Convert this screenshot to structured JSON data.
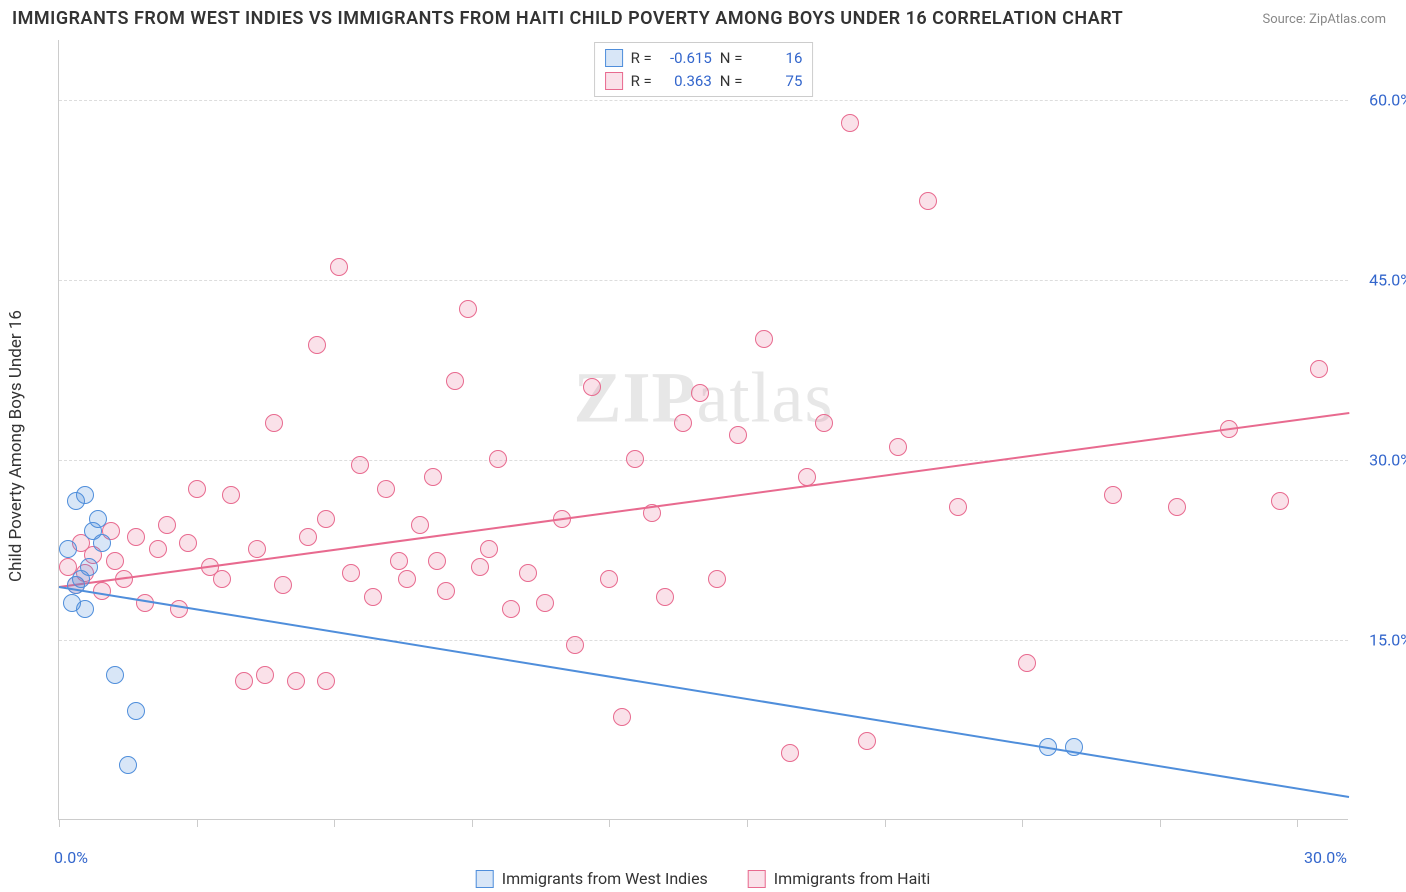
{
  "title": "IMMIGRANTS FROM WEST INDIES VS IMMIGRANTS FROM HAITI CHILD POVERTY AMONG BOYS UNDER 16 CORRELATION CHART",
  "source": "Source: ZipAtlas.com",
  "ylabel": "Child Poverty Among Boys Under 16",
  "watermark": {
    "zip": "ZIP",
    "atlas": "atlas"
  },
  "chart": {
    "type": "scatter",
    "background_color": "#ffffff",
    "grid_color": "#dddddd",
    "axis_color": "#cccccc",
    "tick_label_color": "#3366cc",
    "tick_fontsize": 16,
    "ylabel_fontsize": 17,
    "title_fontsize": 18,
    "xlim": [
      0,
      30
    ],
    "ylim": [
      0,
      65
    ],
    "xticks": [
      0,
      3.2,
      6.4,
      9.6,
      12.8,
      16.0,
      19.2,
      22.4,
      25.6,
      28.8
    ],
    "xtick_labels_shown": {
      "0": "0.0%",
      "30": "30.0%"
    },
    "yticks": [
      15,
      30,
      45,
      60
    ],
    "ytick_labels": {
      "15": "15.0%",
      "30": "30.0%",
      "45": "45.0%",
      "60": "60.0%"
    },
    "marker_radius": 9,
    "marker_fill_opacity": 0.22,
    "marker_stroke_width": 1.2,
    "line_width": 2,
    "series": {
      "west_indies": {
        "label": "Immigrants from West Indies",
        "color": "#4f8edb",
        "fill": "rgba(79,142,219,0.22)",
        "stroke": "#4f8edb",
        "R": "-0.615",
        "N": "16",
        "trend": {
          "x1": 0,
          "y1": 19.5,
          "x2": 30,
          "y2": 2.0
        },
        "points": [
          [
            0.2,
            22.5
          ],
          [
            0.4,
            26.5
          ],
          [
            0.6,
            27.0
          ],
          [
            0.8,
            24.0
          ],
          [
            0.9,
            25.0
          ],
          [
            0.5,
            20.0
          ],
          [
            0.3,
            18.0
          ],
          [
            1.0,
            23.0
          ],
          [
            0.7,
            21.0
          ],
          [
            1.3,
            12.0
          ],
          [
            1.8,
            9.0
          ],
          [
            1.6,
            4.5
          ],
          [
            23.0,
            6.0
          ],
          [
            23.6,
            6.0
          ],
          [
            0.4,
            19.5
          ],
          [
            0.6,
            17.5
          ]
        ]
      },
      "haiti": {
        "label": "Immigrants from Haiti",
        "color": "#e86a8f",
        "fill": "rgba(232,106,143,0.20)",
        "stroke": "#e86a8f",
        "R": "0.363",
        "N": "75",
        "trend": {
          "x1": 0,
          "y1": 19.5,
          "x2": 30,
          "y2": 34.0
        },
        "points": [
          [
            0.2,
            21.0
          ],
          [
            0.4,
            19.5
          ],
          [
            0.5,
            23.0
          ],
          [
            0.6,
            20.5
          ],
          [
            0.8,
            22.0
          ],
          [
            1.0,
            19.0
          ],
          [
            1.2,
            24.0
          ],
          [
            1.3,
            21.5
          ],
          [
            1.5,
            20.0
          ],
          [
            1.8,
            23.5
          ],
          [
            2.0,
            18.0
          ],
          [
            2.3,
            22.5
          ],
          [
            2.5,
            24.5
          ],
          [
            2.8,
            17.5
          ],
          [
            3.0,
            23.0
          ],
          [
            3.2,
            27.5
          ],
          [
            3.5,
            21.0
          ],
          [
            3.8,
            20.0
          ],
          [
            4.0,
            27.0
          ],
          [
            4.3,
            11.5
          ],
          [
            4.6,
            22.5
          ],
          [
            5.0,
            33.0
          ],
          [
            5.2,
            19.5
          ],
          [
            5.5,
            11.5
          ],
          [
            5.8,
            23.5
          ],
          [
            6.0,
            39.5
          ],
          [
            6.2,
            25.0
          ],
          [
            6.5,
            46.0
          ],
          [
            6.8,
            20.5
          ],
          [
            7.0,
            29.5
          ],
          [
            7.3,
            18.5
          ],
          [
            7.6,
            27.5
          ],
          [
            7.9,
            21.5
          ],
          [
            8.1,
            20.0
          ],
          [
            8.4,
            24.5
          ],
          [
            8.7,
            28.5
          ],
          [
            9.0,
            19.0
          ],
          [
            9.2,
            36.5
          ],
          [
            9.5,
            42.5
          ],
          [
            9.8,
            21.0
          ],
          [
            10.2,
            30.0
          ],
          [
            10.5,
            17.5
          ],
          [
            10.9,
            20.5
          ],
          [
            11.3,
            18.0
          ],
          [
            11.7,
            25.0
          ],
          [
            12.0,
            14.5
          ],
          [
            12.4,
            36.0
          ],
          [
            12.8,
            20.0
          ],
          [
            13.1,
            8.5
          ],
          [
            13.4,
            30.0
          ],
          [
            13.8,
            25.5
          ],
          [
            14.1,
            18.5
          ],
          [
            14.5,
            33.0
          ],
          [
            14.9,
            35.5
          ],
          [
            15.3,
            20.0
          ],
          [
            15.8,
            32.0
          ],
          [
            16.4,
            40.0
          ],
          [
            17.0,
            5.5
          ],
          [
            17.4,
            28.5
          ],
          [
            17.8,
            33.0
          ],
          [
            18.4,
            58.0
          ],
          [
            18.8,
            6.5
          ],
          [
            19.5,
            31.0
          ],
          [
            20.2,
            51.5
          ],
          [
            20.9,
            26.0
          ],
          [
            22.5,
            13.0
          ],
          [
            24.5,
            27.0
          ],
          [
            26.0,
            26.0
          ],
          [
            27.2,
            32.5
          ],
          [
            28.4,
            26.5
          ],
          [
            29.3,
            37.5
          ],
          [
            4.8,
            12.0
          ],
          [
            6.2,
            11.5
          ],
          [
            8.8,
            21.5
          ],
          [
            10.0,
            22.5
          ]
        ]
      }
    },
    "legend_stats": {
      "rows": [
        {
          "swatch": "west_indies",
          "rlabel": "R =",
          "nlabel": "N ="
        },
        {
          "swatch": "haiti",
          "rlabel": "R =",
          "nlabel": "N ="
        }
      ]
    }
  }
}
